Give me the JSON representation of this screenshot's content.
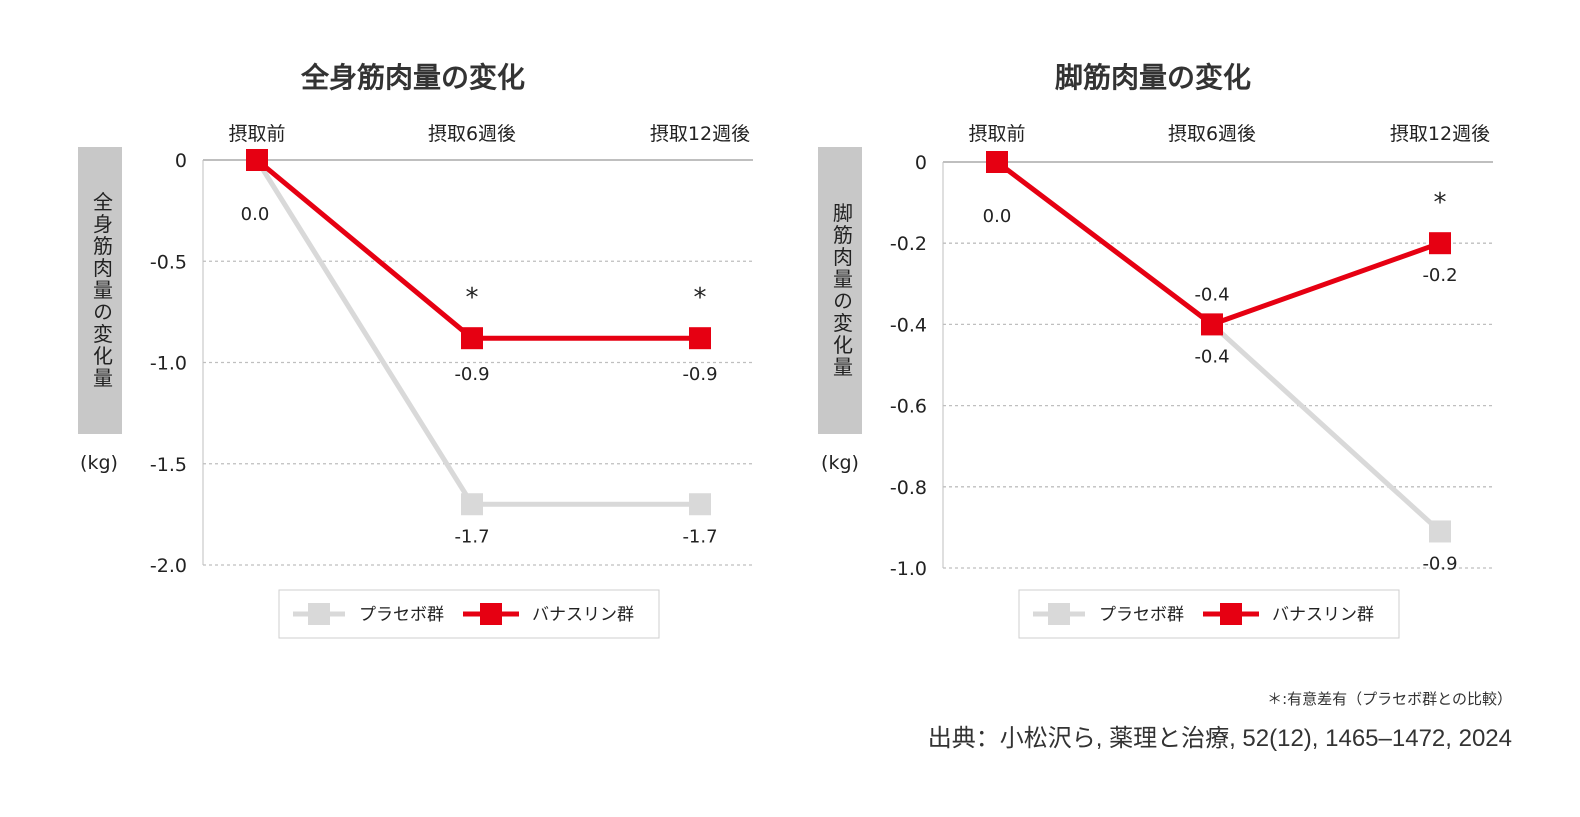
{
  "colors": {
    "placebo": "#d9d9d9",
    "banana": "#e60012",
    "grid": "#bfbfbf",
    "ylabel_bg": "#c8c8c8"
  },
  "chart_data": [
    {
      "type": "line",
      "title": "全身筋肉量の変化",
      "categories": [
        "摂取前",
        "摂取6週後",
        "摂取12週後"
      ],
      "ylabel": "全身筋肉量の変化量",
      "yunit": "(kg)",
      "ylim": [
        -2.0,
        0
      ],
      "yticks": [
        0,
        -0.5,
        -1.0,
        -1.5,
        -2.0
      ],
      "ytick_labels": [
        "0",
        "-0.5",
        "-1.0",
        "-1.5",
        "-2.0"
      ],
      "grid": true,
      "series": [
        {
          "name": "プラセボ群",
          "values": [
            0.0,
            -1.7,
            -1.7
          ],
          "labels": [
            "",
            "-1.7",
            "-1.7"
          ]
        },
        {
          "name": "バナスリン群",
          "values": [
            0.0,
            -0.88,
            -0.88
          ],
          "labels": [
            "0.0",
            "-0.9",
            "-0.9"
          ]
        }
      ],
      "significance": [
        "",
        "*",
        "*"
      ],
      "legend": "bottom"
    },
    {
      "type": "line",
      "title": "脚筋肉量の変化",
      "categories": [
        "摂取前",
        "摂取6週後",
        "摂取12週後"
      ],
      "ylabel": "脚筋肉量の変化量",
      "yunit": "(kg)",
      "ylim": [
        -1.0,
        0
      ],
      "yticks": [
        0,
        -0.2,
        -0.4,
        -0.6,
        -0.8,
        -1.0
      ],
      "ytick_labels": [
        "0",
        "-0.2",
        "-0.4",
        "-0.6",
        "-0.8",
        "-1.0"
      ],
      "grid": true,
      "series": [
        {
          "name": "プラセボ群",
          "values": [
            0.0,
            -0.4,
            -0.91
          ],
          "labels": [
            "",
            "-0.4",
            "-0.9"
          ]
        },
        {
          "name": "バナスリン群",
          "values": [
            0.0,
            -0.4,
            -0.2
          ],
          "labels": [
            "0.0",
            "-0.4",
            "-0.2"
          ]
        }
      ],
      "significance": [
        "",
        "",
        "*"
      ],
      "legend": "bottom"
    }
  ],
  "footnote": "＊:有意差有（プラセボ群との比較）",
  "source": "出典：小松沢ら, 薬理と治療, 52(12), 1465–1472, 2024"
}
